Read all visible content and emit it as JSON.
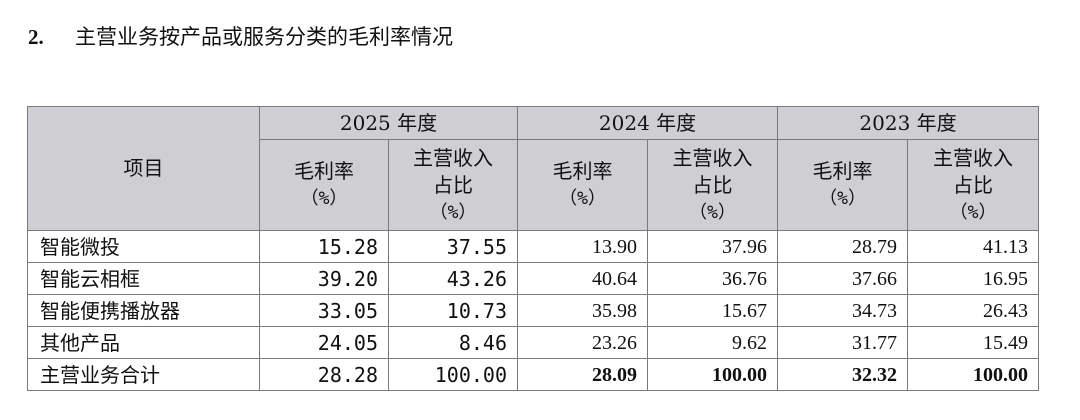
{
  "heading": {
    "number": "2.",
    "title": "主营业务按产品或服务分类的毛利率情况"
  },
  "table": {
    "project_header": "项目",
    "years": [
      "2025 年度",
      "2024 年度",
      "2023 年度"
    ],
    "sub_headers": {
      "margin_line1": "毛利率",
      "margin_line2": "（%）",
      "share_line1": "主营收入",
      "share_line2": "占比",
      "share_line3": "（%）"
    },
    "rows": [
      {
        "label": "智能微投",
        "values": [
          "15.28",
          "37.55",
          "13.90",
          "37.96",
          "28.79",
          "41.13"
        ]
      },
      {
        "label": "智能云相框",
        "values": [
          "39.20",
          "43.26",
          "40.64",
          "36.76",
          "37.66",
          "16.95"
        ]
      },
      {
        "label": "智能便携播放器",
        "values": [
          "33.05",
          "10.73",
          "35.98",
          "15.67",
          "34.73",
          "26.43"
        ]
      },
      {
        "label": "其他产品",
        "values": [
          "24.05",
          "8.46",
          "23.26",
          "9.62",
          "31.77",
          "15.49"
        ]
      },
      {
        "label": "主营业务合计",
        "values": [
          "28.28",
          "100.00",
          "28.09",
          "100.00",
          "32.32",
          "100.00"
        ]
      }
    ]
  }
}
